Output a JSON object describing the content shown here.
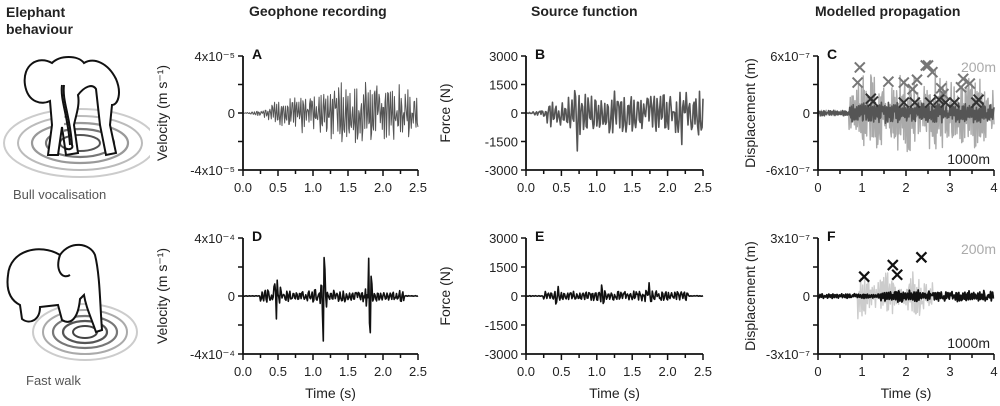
{
  "column_titles": {
    "behaviour": "Elephant behaviour",
    "behaviour_line1": "Elephant",
    "behaviour_line2": "behaviour",
    "geophone": "Geophone recording",
    "source": "Source function",
    "propagation": "Modelled propagation"
  },
  "behaviours": [
    {
      "label": "Bull vocalisation",
      "icon": "elephant-front-icon"
    },
    {
      "label": "Fast walk",
      "icon": "elephant-walking-icon"
    }
  ],
  "chart_data": [
    {
      "panel": "A",
      "type": "line",
      "title": "Geophone recording – Bull vocalisation",
      "xlabel": "",
      "ylabel": "Velocity (m s⁻¹)",
      "xlim": [
        0,
        2.5
      ],
      "ylim": [
        -4e-05,
        4e-05
      ],
      "xticks": [
        "0.0",
        "0.5",
        "1.0",
        "1.5",
        "2.0",
        "2.5"
      ],
      "yticks": [
        "-4x10⁻⁵",
        "0",
        "4x10⁻⁵"
      ],
      "color": "#555555",
      "envelope": {
        "x": [
          0,
          0.25,
          0.5,
          0.75,
          1.0,
          1.5,
          2.0,
          2.5
        ],
        "amp": [
          0,
          2e-06,
          8e-06,
          1.3e-05,
          1.3e-05,
          2.2e-05,
          2e-05,
          1.6e-05
        ]
      }
    },
    {
      "panel": "B",
      "type": "line",
      "title": "Source function – Bull vocalisation",
      "xlabel": "",
      "ylabel": "Force (N)",
      "xlim": [
        0,
        2.5
      ],
      "ylim": [
        -3000,
        3000
      ],
      "xticks": [
        "0.0",
        "0.5",
        "1.0",
        "1.5",
        "2.0",
        "2.5"
      ],
      "yticks": [
        "-3000",
        "-1500",
        "0",
        "1500",
        "3000"
      ],
      "color": "#555555",
      "peaks": [
        {
          "x": 0.73,
          "y": 2100
        },
        {
          "x": 0.71,
          "y": -2200
        },
        {
          "x": 2.2,
          "y": 2000
        },
        {
          "x": 2.18,
          "y": -2100
        }
      ]
    },
    {
      "panel": "C",
      "type": "line",
      "title": "Modelled propagation – Bull vocalisation",
      "xlabel": "",
      "ylabel": "Displacement (m)",
      "xlim": [
        0,
        4
      ],
      "ylim": [
        -6e-07,
        6e-07
      ],
      "xticks": [
        "0",
        "1",
        "2",
        "3",
        "4"
      ],
      "yticks": [
        "-6x10⁻⁷",
        "0",
        "6x10⁻⁷"
      ],
      "series": [
        {
          "name": "200m",
          "color": "#aaaaaa"
        },
        {
          "name": "1000m",
          "color": "#555555"
        }
      ],
      "markers_200m": [
        [
          0.95,
          4.8e-07
        ],
        [
          0.9,
          3.2e-07
        ],
        [
          1.6,
          3.3e-07
        ],
        [
          1.95,
          3.2e-07
        ],
        [
          2.15,
          2.5e-07
        ],
        [
          2.25,
          3.5e-07
        ],
        [
          2.45,
          5e-07
        ],
        [
          2.5,
          5e-07
        ],
        [
          2.6,
          4.3e-07
        ],
        [
          2.8,
          2.6e-07
        ],
        [
          2.85,
          2e-07
        ],
        [
          3.25,
          2.7e-07
        ],
        [
          3.3,
          3.6e-07
        ],
        [
          3.45,
          3.1e-07
        ]
      ],
      "markers_1000m": [
        [
          1.2,
          1.5e-07
        ],
        [
          1.25,
          1.2e-07
        ],
        [
          1.95,
          1.1e-07
        ],
        [
          2.2,
          1.1e-07
        ],
        [
          2.55,
          1.1e-07
        ],
        [
          2.75,
          1.4e-07
        ],
        [
          2.9,
          1.1e-07
        ],
        [
          3.1,
          1.1e-07
        ],
        [
          3.6,
          1.1e-07
        ],
        [
          3.65,
          1.4e-07
        ]
      ]
    },
    {
      "panel": "D",
      "type": "line",
      "title": "Geophone recording – Fast walk",
      "xlabel": "Time (s)",
      "ylabel": "Velocity (m s⁻¹)",
      "xlim": [
        0,
        2.5
      ],
      "ylim": [
        -0.0004,
        0.0004
      ],
      "xticks": [
        "0.0",
        "0.5",
        "1.0",
        "1.5",
        "2.0",
        "2.5"
      ],
      "yticks": [
        "-4x10⁻⁴",
        "0",
        "4x10⁻⁴"
      ],
      "color": "#111111",
      "peaks": [
        {
          "x": 0.5,
          "y": 0.00022
        },
        {
          "x": 0.48,
          "y": -0.00021
        },
        {
          "x": 1.15,
          "y": 0.00034
        },
        {
          "x": 1.13,
          "y": -0.00026
        },
        {
          "x": 1.8,
          "y": 0.00036
        },
        {
          "x": 1.78,
          "y": -0.00027
        }
      ]
    },
    {
      "panel": "E",
      "type": "line",
      "title": "Source function – Fast walk",
      "xlabel": "Time (s)",
      "ylabel": "Force (N)",
      "xlim": [
        0,
        2.5
      ],
      "ylim": [
        -3000,
        3000
      ],
      "xticks": [
        "0.0",
        "0.5",
        "1.0",
        "1.5",
        "2.0",
        "2.5"
      ],
      "yticks": [
        "-3000",
        "-1500",
        "0",
        "1500",
        "3000"
      ],
      "color": "#111111",
      "peaks": [
        {
          "x": 0.42,
          "y": 500
        },
        {
          "x": 0.45,
          "y": -500
        },
        {
          "x": 1.08,
          "y": 800
        },
        {
          "x": 1.1,
          "y": -700
        },
        {
          "x": 1.72,
          "y": 1000
        },
        {
          "x": 1.75,
          "y": -600
        }
      ]
    },
    {
      "panel": "F",
      "type": "line",
      "title": "Modelled propagation – Fast walk",
      "xlabel": "Time (s)",
      "ylabel": "Displacement (m)",
      "xlim": [
        0,
        4
      ],
      "ylim": [
        -3e-07,
        3e-07
      ],
      "xticks": [
        "0",
        "1",
        "2",
        "3",
        "4"
      ],
      "yticks": [
        "-3x10⁻⁷",
        "0",
        "3x10⁻⁷"
      ],
      "series": [
        {
          "name": "200m",
          "color": "#cccccc"
        },
        {
          "name": "1000m",
          "color": "#111111"
        }
      ],
      "markers": [
        [
          1.05,
          1e-07
        ],
        [
          1.7,
          1.6e-07
        ],
        [
          1.8,
          1.1e-07
        ],
        [
          2.35,
          2e-07
        ]
      ]
    }
  ]
}
